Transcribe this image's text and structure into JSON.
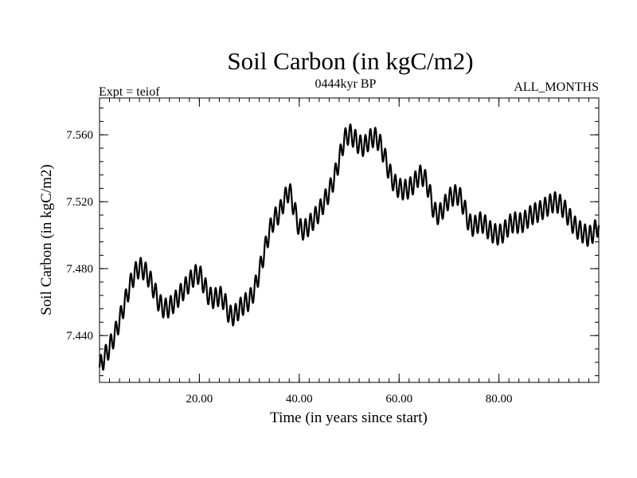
{
  "chart_data": {
    "type": "line",
    "title": "Soil Carbon (in kgC/m2)",
    "subtitle_left": "Expt = teiof",
    "subtitle_center": "0444kyr BP",
    "subtitle_right": "ALL_MONTHS",
    "xlabel": "Time (in years since start)",
    "ylabel": "Soil Carbon (in kgC/m2)",
    "xlim": [
      0,
      100
    ],
    "ylim": [
      7.412,
      7.582
    ],
    "x_ticks": [
      20,
      40,
      60,
      80
    ],
    "x_tick_labels": [
      "20.00",
      "40.00",
      "60.00",
      "80.00"
    ],
    "y_ticks": [
      7.44,
      7.48,
      7.52,
      7.56
    ],
    "y_tick_labels": [
      "7.440",
      "7.480",
      "7.520",
      "7.560"
    ],
    "x_minor_step": 2,
    "y_minor_step": 0.008,
    "grid": false,
    "seasonal_cycle_amplitude": 0.006,
    "series": [
      {
        "color": "#000000",
        "trend": {
          "x": [
            0,
            1,
            2,
            3,
            4,
            5,
            6,
            7,
            8,
            9,
            10,
            11,
            12,
            13,
            14,
            15,
            16,
            17,
            18,
            19,
            20,
            21,
            22,
            23,
            24,
            25,
            26,
            27,
            28,
            29,
            30,
            31,
            32,
            33,
            34,
            35,
            36,
            37,
            38,
            39,
            40,
            41,
            42,
            43,
            44,
            45,
            46,
            47,
            48,
            49,
            50,
            51,
            52,
            53,
            54,
            55,
            56,
            57,
            58,
            59,
            60,
            61,
            62,
            63,
            64,
            65,
            66,
            67,
            68,
            69,
            70,
            71,
            72,
            73,
            74,
            75,
            76,
            77,
            78,
            79,
            80,
            81,
            82,
            83,
            84,
            85,
            86,
            87,
            88,
            89,
            90,
            91,
            92,
            93,
            94,
            95,
            96,
            97,
            98,
            99,
            100
          ],
          "y": [
            7.421,
            7.427,
            7.433,
            7.44,
            7.449,
            7.459,
            7.469,
            7.477,
            7.481,
            7.479,
            7.474,
            7.467,
            7.459,
            7.456,
            7.457,
            7.46,
            7.464,
            7.468,
            7.472,
            7.476,
            7.477,
            7.47,
            7.463,
            7.462,
            7.464,
            7.461,
            7.452,
            7.452,
            7.456,
            7.459,
            7.461,
            7.467,
            7.478,
            7.49,
            7.502,
            7.51,
            7.513,
            7.521,
            7.527,
            7.516,
            7.504,
            7.503,
            7.506,
            7.51,
            7.514,
            7.52,
            7.526,
            7.534,
            7.545,
            7.557,
            7.561,
            7.558,
            7.554,
            7.553,
            7.557,
            7.559,
            7.556,
            7.548,
            7.538,
            7.531,
            7.528,
            7.527,
            7.528,
            7.531,
            7.536,
            7.535,
            7.527,
            7.514,
            7.512,
            7.517,
            7.522,
            7.524,
            7.524,
            7.517,
            7.507,
            7.505,
            7.508,
            7.507,
            7.503,
            7.501,
            7.5,
            7.502,
            7.506,
            7.508,
            7.507,
            7.508,
            7.511,
            7.513,
            7.514,
            7.516,
            7.518,
            7.52,
            7.519,
            7.516,
            7.511,
            7.506,
            7.503,
            7.501,
            7.499,
            7.502,
            7.506
          ]
        }
      }
    ]
  }
}
